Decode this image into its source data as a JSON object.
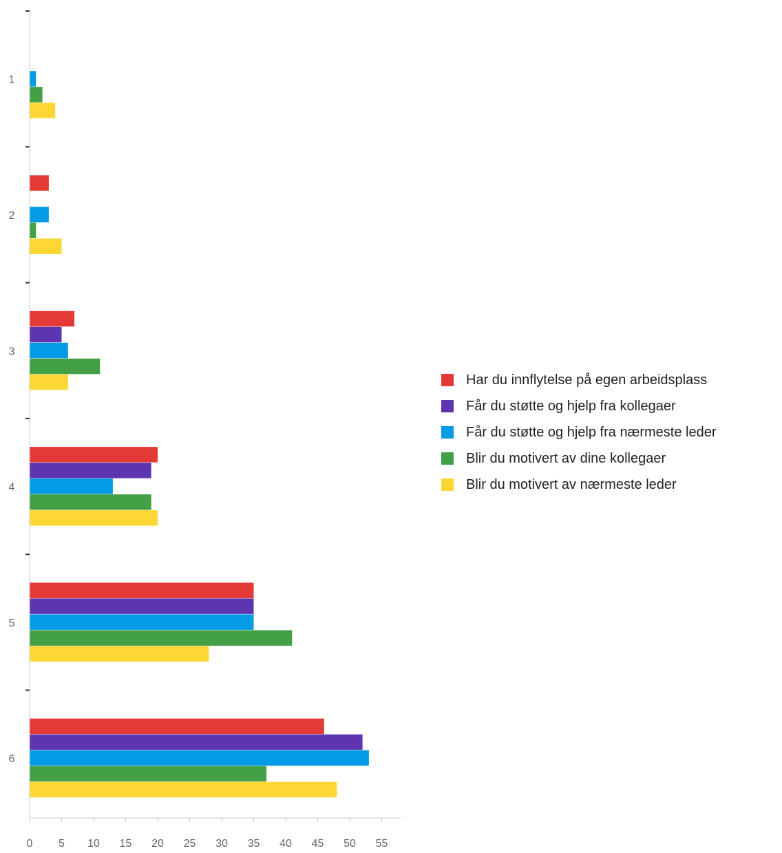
{
  "chart_data": {
    "type": "bar",
    "orientation": "horizontal",
    "categories": [
      "1",
      "2",
      "3",
      "4",
      "5",
      "6"
    ],
    "series": [
      {
        "name": "Har du innflytelse på egen arbeidsplass",
        "color": "#e53935",
        "values": [
          0,
          3,
          7,
          20,
          35,
          46
        ]
      },
      {
        "name": "Får du støtte og hjelp fra kollegaer",
        "color": "#5e35b1",
        "values": [
          0,
          0,
          5,
          19,
          35,
          52
        ]
      },
      {
        "name": "Får du støtte og hjelp fra nærmeste leder",
        "color": "#039be5",
        "values": [
          1,
          3,
          6,
          13,
          35,
          53
        ]
      },
      {
        "name": "Blir du motivert av dine kollegaer",
        "color": "#43a047",
        "values": [
          2,
          1,
          11,
          19,
          41,
          37
        ]
      },
      {
        "name": "Blir du motivert av nærmeste leder",
        "color": "#fdd835",
        "values": [
          4,
          5,
          6,
          20,
          28,
          48
        ]
      }
    ],
    "x_ticks": [
      0,
      5,
      10,
      15,
      20,
      25,
      30,
      35,
      40,
      45,
      50,
      55
    ],
    "xlim": [
      0,
      58
    ],
    "title": "",
    "xlabel": "",
    "ylabel": "",
    "grid": false,
    "legend_position": "right"
  }
}
